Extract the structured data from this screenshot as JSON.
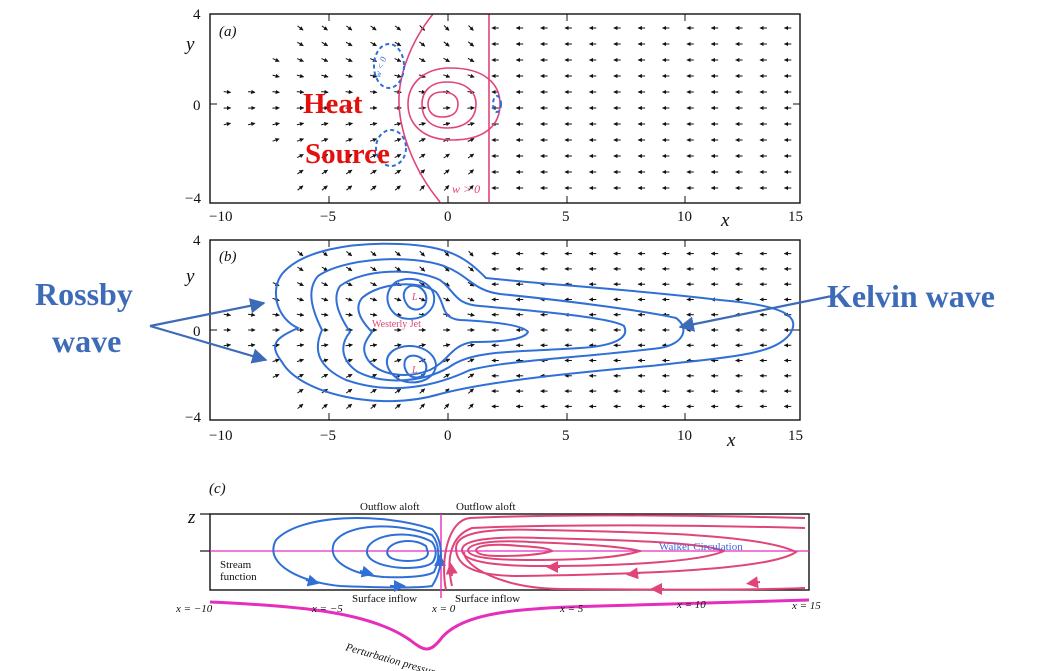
{
  "colors": {
    "blue": "#2f6fd6",
    "pink": "#e0457a",
    "magenta": "#e62ebd",
    "red_text": "#e4100e",
    "blue_text": "#3d6bb8",
    "arrow": "#111111"
  },
  "panel_a": {
    "label": "(a)",
    "y_label": "y",
    "x_label": "x",
    "y_ticks": [
      "4",
      "0",
      "−4"
    ],
    "x_ticks": [
      "−10",
      "−5",
      "0",
      "5",
      "10",
      "15"
    ],
    "w_pos_label": "w > 0",
    "w_neg_label": "w < 0",
    "heat_line1": "Heat",
    "heat_line2": "Source"
  },
  "panel_b": {
    "label": "(b)",
    "y_label": "y",
    "x_label": "x",
    "y_ticks": [
      "4",
      "0",
      "−4"
    ],
    "x_ticks": [
      "−10",
      "−5",
      "0",
      "5",
      "10",
      "15"
    ],
    "jet_label": "Westerly Jet",
    "low_label": "L"
  },
  "annotations": {
    "rossby_line1": "Rossby",
    "rossby_line2": "wave",
    "kelvin": "Kelvin wave"
  },
  "panel_c": {
    "label": "(c)",
    "z_label": "z",
    "outflow_left": "Outflow aloft",
    "outflow_right": "Outflow aloft",
    "inflow_left": "Surface inflow",
    "inflow_right": "Surface inflow",
    "stream_line1": "Stream",
    "stream_line2": "function",
    "walker": "Walker Circulation",
    "pressure": "Perturbation pressure p",
    "x_marks": [
      "x = −10",
      "x = −5",
      "x = 0",
      "x = 5",
      "x = 10",
      "x = 15"
    ]
  }
}
